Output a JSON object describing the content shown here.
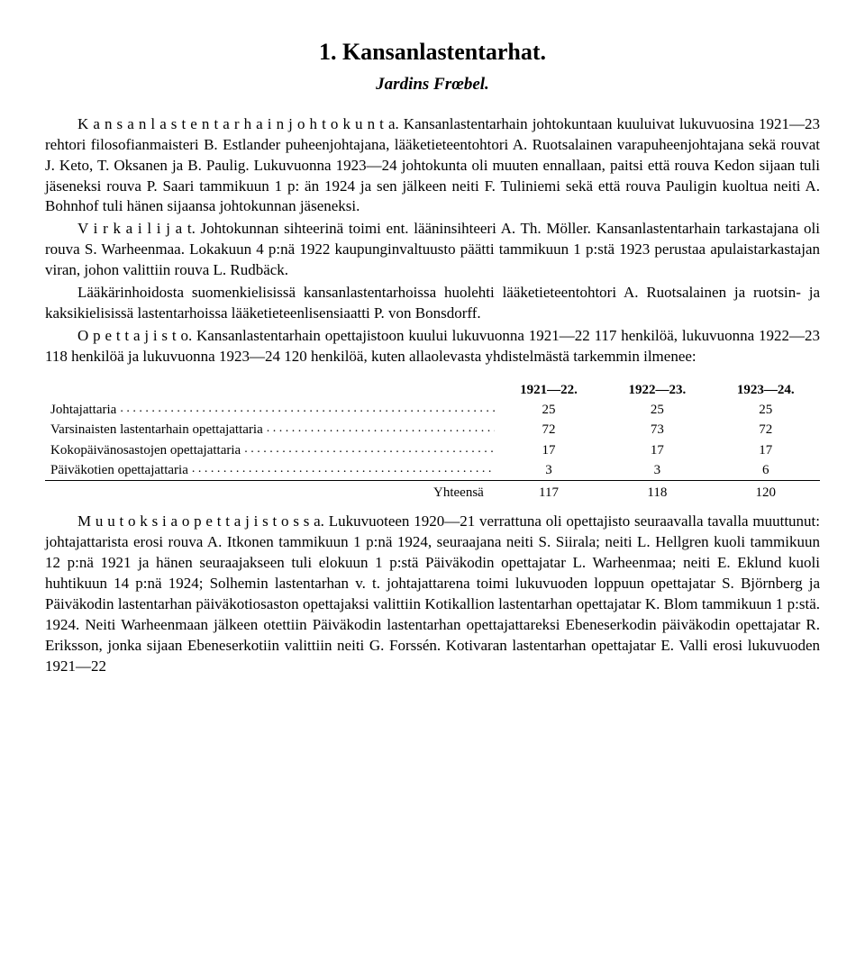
{
  "title": "1. Kansanlastentarhat.",
  "subtitle": "Jardins Frœbel.",
  "paragraphs": {
    "p1": "K a n s a n l a s t e n t a r h a i n  j o h t o k u n t a.  Kansanlastentarhain johtokuntaan kuuluivat lukuvuosina 1921—23 rehtori filosofianmaisteri B. Estlander puheenjohtajana, lääketieteentohtori A. Ruotsalainen varapuheenjohtajana sekä rouvat J. Keto, T. Oksanen ja B. Paulig. Lukuvuonna 1923—24 johtokunta oli muuten ennallaan, paitsi että rouva Kedon sijaan tuli jäseneksi rouva P. Saari tammikuun 1 p: än 1924 ja sen jälkeen neiti F. Tuliniemi sekä että rouva Pauligin kuoltua neiti A. Bohnhof tuli hänen sijaansa johtokunnan jäseneksi.",
    "p2": "V i r k a i l i j a t.  Johtokunnan sihteerinä toimi ent. lääninsihteeri A. Th. Möller. Kansanlastentarhain tarkastajana oli rouva S. Warheenmaa. Lokakuun 4 p:nä 1922 kaupunginvaltuusto päätti tammikuun 1 p:stä 1923 perustaa apulaistarkastajan viran, johon valittiin rouva L. Rudbäck.",
    "p3": "Lääkärinhoidosta suomenkielisissä kansanlastentarhoissa huolehti lääketieteentohtori A. Ruotsalainen ja ruotsin- ja kaksikielisissä lastentarhoissa lääketieteenlisensiaatti P. von Bonsdorff.",
    "p4": "O p e t t a j i s t o.  Kansanlastentarhain opettajistoon kuului lukuvuonna 1921—22 117 henkilöä, lukuvuonna 1922—23 118 henkilöä ja lukuvuonna 1923—24 120 henkilöä, kuten allaolevasta yhdistelmästä tarkemmin ilmenee:",
    "p5": "M u u t o k s i a  o p e t t a j i s t o s s a.  Lukuvuoteen 1920—21 verrattuna oli opettajisto seuraavalla tavalla muuttunut: johtajattarista erosi rouva A. Itkonen tammikuun 1 p:nä 1924, seuraajana neiti S. Siirala; neiti L. Hellgren kuoli tammikuun 12 p:nä 1921 ja hänen seuraajakseen tuli elokuun 1 p:stä Päiväkodin opettajatar L. Warheenmaa; neiti E. Eklund kuoli huhtikuun 14 p:nä 1924; Solhemin lastentarhan v. t. johtajattarena toimi lukuvuoden loppuun opettajatar S. Björnberg ja Päiväkodin lastentarhan päiväkotiosaston opettajaksi valittiin Kotikallion lastentarhan opettajatar K. Blom tammikuun 1 p:stä. 1924. Neiti Warheenmaan jälkeen otettiin Päiväkodin lastentarhan opettajattareksi Ebeneserkodin päiväkodin opettajatar R. Eriksson, jonka sijaan Ebeneserkotiin valittiin neiti G. Forssén. Kotivaran lastentarhan opettajatar E. Valli erosi lukuvuoden 1921—22"
  },
  "table": {
    "headers": [
      "",
      "1921—22.",
      "1922—23.",
      "1923—24."
    ],
    "rows": [
      {
        "label": "Johtajattaria",
        "vals": [
          "25",
          "25",
          "25"
        ]
      },
      {
        "label": "Varsinaisten lastentarhain opettajattaria",
        "vals": [
          "72",
          "73",
          "72"
        ]
      },
      {
        "label": "Kokopäivänosastojen opettajattaria",
        "vals": [
          "17",
          "17",
          "17"
        ]
      },
      {
        "label": "Päiväkotien opettajattaria",
        "vals": [
          "3",
          "3",
          "6"
        ]
      }
    ],
    "total_label": "Yhteensä",
    "totals": [
      "117",
      "118",
      "120"
    ]
  }
}
